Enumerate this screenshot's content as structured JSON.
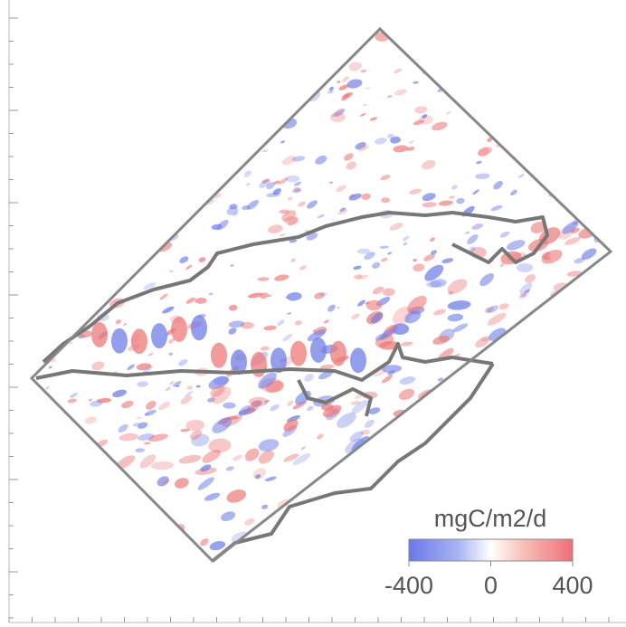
{
  "colorbar": {
    "label": "mgC/m2/d",
    "range": [
      -400,
      400
    ],
    "ticks": [
      -400,
      0,
      400
    ]
  }
}
